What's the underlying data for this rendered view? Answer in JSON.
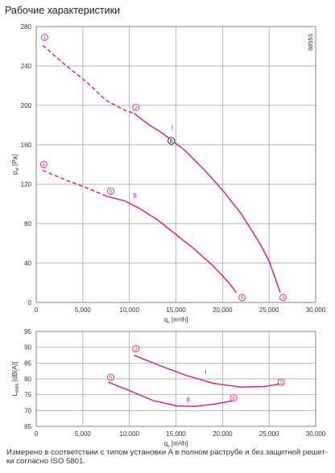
{
  "page": {
    "title": "Рабочие характеристики",
    "footnote_line1": "Измерено в соответствии с типом установки A в полном раструбе и без защитной решет-",
    "footnote_line2": "ки согласно ISO 5801."
  },
  "chart_data": [
    {
      "type": "line",
      "id": "pressure",
      "title": "",
      "xlabel": "qv [m³/h]",
      "xlabel_main": "q",
      "xlabel_sub": "v",
      "xlabel_unit": " [m³/h]",
      "ylabel": "psf [Pa]",
      "ylabel_main": "p",
      "ylabel_sub": "sf",
      "ylabel_unit": " [Pa]",
      "xlim": [
        0,
        30000
      ],
      "ylim": [
        0,
        280
      ],
      "x_ticks": [
        0,
        5000,
        10000,
        15000,
        20000,
        25000,
        30000
      ],
      "x_tick_labels": [
        "0",
        "5,000",
        "10,000",
        "15,000",
        "20,000",
        "25,000",
        "30,000"
      ],
      "y_ticks": [
        0,
        40,
        80,
        120,
        160,
        200,
        240,
        280
      ],
      "y_tick_labels": [
        "0",
        "40",
        "80",
        "120",
        "160",
        "200",
        "240",
        "280"
      ],
      "grid": true,
      "code": "88553",
      "color": "#d6248b",
      "series": [
        {
          "name": "I",
          "dashed_points": [
            [
              700,
              261
            ],
            [
              3000,
              242
            ],
            [
              5500,
              223
            ],
            [
              7500,
              205
            ],
            [
              9500,
              195
            ],
            [
              10500,
              192
            ]
          ],
          "solid_points": [
            [
              10500,
              192
            ],
            [
              12000,
              181
            ],
            [
              13500,
              172
            ],
            [
              14500,
              165
            ],
            [
              16000,
              154
            ],
            [
              18000,
              135
            ],
            [
              20000,
              114
            ],
            [
              22000,
              90
            ],
            [
              24000,
              60
            ],
            [
              25000,
              42
            ],
            [
              26200,
              10
            ]
          ]
        },
        {
          "name": "II",
          "dashed_points": [
            [
              700,
              134
            ],
            [
              3000,
              125
            ],
            [
              5500,
              116
            ],
            [
              7500,
              108
            ]
          ],
          "solid_points": [
            [
              7500,
              108
            ],
            [
              9500,
              103
            ],
            [
              11000,
              96
            ],
            [
              13000,
              84
            ],
            [
              15000,
              69
            ],
            [
              17000,
              54
            ],
            [
              19000,
              37
            ],
            [
              20500,
              22
            ],
            [
              21500,
              10
            ]
          ]
        }
      ],
      "markers": [
        {
          "label": "1",
          "x": 900,
          "y": 269
        },
        {
          "label": "2",
          "x": 10700,
          "y": 198
        },
        {
          "label": "3",
          "x": 26500,
          "y": 5
        },
        {
          "label": "4",
          "x": 800,
          "y": 140
        },
        {
          "label": "5",
          "x": 8000,
          "y": 113
        },
        {
          "label": "6",
          "x": 22100,
          "y": 5
        },
        {
          "label": "B",
          "x": 14500,
          "y": 164,
          "style": "point"
        }
      ],
      "curve_labels": [
        {
          "text": "I",
          "x": 14600,
          "y": 175
        },
        {
          "text": "II",
          "x": 10600,
          "y": 106
        }
      ]
    },
    {
      "type": "line",
      "id": "sound",
      "title": "",
      "xlabel": "qv [m³/h]",
      "xlabel_main": "q",
      "xlabel_sub": "v",
      "xlabel_unit": " [m³/h]",
      "ylabel": "LWA5 [dB(A)]",
      "ylabel_main": "L",
      "ylabel_sub": "WA5",
      "ylabel_unit": " [dB(A)]",
      "xlim": [
        0,
        30000
      ],
      "ylim": [
        65,
        95
      ],
      "x_ticks": [
        0,
        5000,
        10000,
        15000,
        20000,
        25000,
        30000
      ],
      "x_tick_labels": [
        "0",
        "5,000",
        "10,000",
        "15,000",
        "20,000",
        "25,000",
        "30,000"
      ],
      "y_ticks": [
        65,
        70,
        75,
        80,
        85,
        90,
        95
      ],
      "y_tick_labels": [
        "65",
        "70",
        "75",
        "80",
        "85",
        "90",
        "95"
      ],
      "grid": true,
      "color": "#d6248b",
      "series": [
        {
          "name": "I",
          "solid_points": [
            [
              10500,
              87.5
            ],
            [
              13000,
              84.5
            ],
            [
              16000,
              81.2
            ],
            [
              19000,
              78.6
            ],
            [
              22000,
              77.4
            ],
            [
              24500,
              77.6
            ],
            [
              26200,
              78.4
            ]
          ]
        },
        {
          "name": "II",
          "solid_points": [
            [
              7700,
              79
            ],
            [
              10000,
              76.3
            ],
            [
              12500,
              73.2
            ],
            [
              15000,
              71.5
            ],
            [
              17000,
              71.3
            ],
            [
              19000,
              72
            ],
            [
              21000,
              73
            ]
          ]
        }
      ],
      "markers": [
        {
          "label": "2",
          "x": 10700,
          "y": 89.5
        },
        {
          "label": "3",
          "x": 26300,
          "y": 79
        },
        {
          "label": "5",
          "x": 8000,
          "y": 80.5
        },
        {
          "label": "6",
          "x": 21200,
          "y": 74
        }
      ],
      "curve_labels": [
        {
          "text": "I",
          "x": 18200,
          "y": 81.5
        },
        {
          "text": "II",
          "x": 16300,
          "y": 72.8
        }
      ]
    }
  ]
}
